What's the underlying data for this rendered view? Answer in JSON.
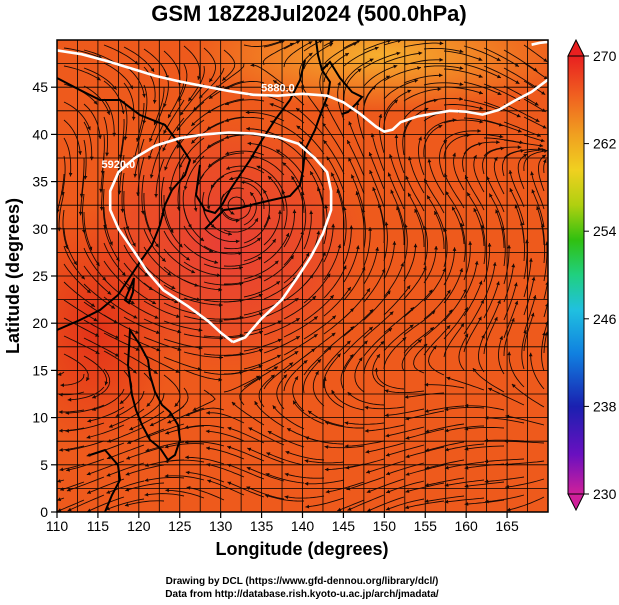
{
  "title": "GSM 18Z28Jul2024 (500.0hPa)",
  "xlabel": "Longitude (degrees)",
  "ylabel": "Latitude  (degrees)",
  "credits": {
    "line1": "Drawing by DCL (https://www.gfd-dennou.org/library/dcl/)",
    "line2": "Data from http://database.rish.kyoto-u.ac.jp/arch/jmadata/"
  },
  "chart_data": {
    "type": "heatmap",
    "variable": "500 hPa temperature (shaded) with wind streamlines and geopotential height contours",
    "xlim": [
      110,
      170
    ],
    "ylim": [
      0,
      50
    ],
    "xticks": [
      110,
      115,
      120,
      125,
      130,
      135,
      140,
      145,
      150,
      155,
      160,
      165
    ],
    "yticks": [
      0,
      5,
      10,
      15,
      20,
      25,
      30,
      35,
      40,
      45
    ],
    "xtick_labels": [
      "110",
      "115",
      "120",
      "125",
      "130",
      "135",
      "140",
      "145",
      "150",
      "155",
      "160",
      "165"
    ],
    "ytick_labels": [
      "0",
      "5",
      "10",
      "15",
      "20",
      "25",
      "30",
      "35",
      "40",
      "45"
    ],
    "grid": true,
    "colorbar": {
      "min": 230,
      "max": 270,
      "ticks": [
        270,
        262,
        254,
        246,
        238,
        230
      ],
      "tick_labels": [
        "270",
        "262",
        "254",
        "246",
        "238",
        "230"
      ],
      "colors": [
        "#d0209a",
        "#6a10c0",
        "#1a20b0",
        "#1080e0",
        "#20c0e0",
        "#20d080",
        "#30c010",
        "#b0d010",
        "#f0d020",
        "#f0a020",
        "#f06020",
        "#e82020"
      ]
    },
    "contours": [
      {
        "label": "5880.0",
        "points": [
          [
            110,
            48.9
          ],
          [
            113,
            48.5
          ],
          [
            116,
            47.8
          ],
          [
            119,
            47.0
          ],
          [
            122,
            46.2
          ],
          [
            125,
            45.6
          ],
          [
            128,
            45.1
          ],
          [
            131,
            44.6
          ],
          [
            134,
            44.2
          ],
          [
            137,
            44.1
          ],
          [
            140,
            44.3
          ],
          [
            143,
            44.1
          ],
          [
            145,
            43.4
          ],
          [
            147,
            42.2
          ],
          [
            149,
            40.8
          ],
          [
            150,
            40.3
          ],
          [
            151,
            40.5
          ],
          [
            152,
            41.3
          ],
          [
            154,
            41.9
          ],
          [
            156,
            42.2
          ],
          [
            158,
            42.5
          ],
          [
            160,
            42.4
          ],
          [
            162,
            42.1
          ],
          [
            164,
            42.6
          ],
          [
            166,
            43.6
          ],
          [
            168,
            44.5
          ],
          [
            170,
            45.8
          ]
        ]
      },
      {
        "label": "5880.0",
        "points": [
          [
            168,
            49.5
          ],
          [
            169,
            49.7
          ],
          [
            170,
            49.8
          ]
        ]
      },
      {
        "label": "5920.0",
        "points": [
          [
            131.5,
            18.0
          ],
          [
            130,
            19.0
          ],
          [
            128.5,
            20.2
          ],
          [
            126,
            21.8
          ],
          [
            123,
            23.5
          ],
          [
            121,
            25.5
          ],
          [
            119.5,
            27.5
          ],
          [
            117.5,
            30.0
          ],
          [
            116.5,
            32.0
          ],
          [
            116.5,
            34.0
          ],
          [
            117.5,
            36.0
          ],
          [
            119.5,
            37.5
          ],
          [
            122,
            38.8
          ],
          [
            125,
            39.6
          ],
          [
            128,
            40.0
          ],
          [
            131,
            40.2
          ],
          [
            134,
            40.1
          ],
          [
            137,
            39.7
          ],
          [
            139.5,
            39.0
          ],
          [
            141.5,
            37.5
          ],
          [
            143,
            36.0
          ],
          [
            143.5,
            34.0
          ],
          [
            143.5,
            32.0
          ],
          [
            142.5,
            29.5
          ],
          [
            141,
            27.0
          ],
          [
            139.5,
            25.0
          ],
          [
            137.5,
            22.5
          ],
          [
            135,
            20.5
          ],
          [
            133,
            18.5
          ],
          [
            131.5,
            18.0
          ]
        ]
      }
    ],
    "vortex_center": [
      132,
      32.5
    ]
  }
}
